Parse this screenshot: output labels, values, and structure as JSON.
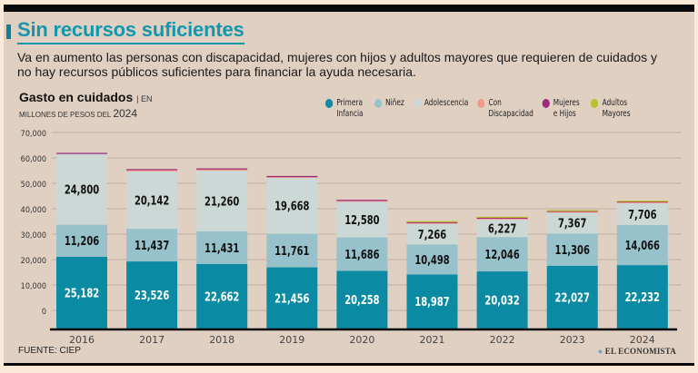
{
  "header": {
    "title": "Sin recursos suficientes",
    "subtitle": "Va en aumento las personas con discapacidad, mujeres con hijos y adultos mayores que requieren de cuidados y no hay recursos públicos suficientes para financiar la ayuda necesaria."
  },
  "footer": {
    "source": "FUENTE: CIEP",
    "logo": "EL ECONOMISTA"
  },
  "chart_data": {
    "type": "bar",
    "stacked": true,
    "title": "Gasto en cuidados",
    "unit_prefix": "| EN",
    "unit_line": "MILLONES DE PESOS DEL",
    "unit_year": "2024",
    "xlabel": "",
    "ylabel": "",
    "ylim": [
      0,
      70000
    ],
    "yticks": [
      "70,000",
      "60,000",
      "50,000",
      "40,000",
      "30,000",
      "20,000",
      "10,000",
      "0"
    ],
    "grid": true,
    "legend_position": "top-right",
    "categories": [
      "2016",
      "2017",
      "2018",
      "2019",
      "2020",
      "2021",
      "2022",
      "2023",
      "2024"
    ],
    "series": [
      {
        "name": "Primera Infancia",
        "color": "#0a8ba3",
        "label_color": "#ffffff",
        "labeled": true,
        "values": [
          25182,
          23526,
          22662,
          21456,
          20258,
          18987,
          20032,
          22027,
          22232
        ],
        "labels": [
          "25,182",
          "23,526",
          "22,662",
          "21,456",
          "20,258",
          "18,987",
          "20,032",
          "22,027",
          "22,232"
        ]
      },
      {
        "name": "Niñez",
        "color": "#97c2cb",
        "label_color": "#111111",
        "labeled": true,
        "values": [
          11206,
          11437,
          11431,
          11761,
          11686,
          10498,
          12046,
          11306,
          14066
        ],
        "labels": [
          "11,206",
          "11,437",
          "11,431",
          "11,761",
          "11,686",
          "10,498",
          "12,046",
          "11,306",
          "14,066"
        ]
      },
      {
        "name": "Adolescencia",
        "color": "#ccd8d6",
        "label_color": "#111111",
        "labeled": true,
        "values": [
          24800,
          20142,
          21260,
          19668,
          12580,
          7266,
          6227,
          7367,
          7706
        ],
        "labels": [
          "24,800",
          "20,142",
          "21,260",
          "19,668",
          "12,580",
          "7,266",
          "6,227",
          "7,367",
          "7,706"
        ]
      },
      {
        "name": "Con Discapacidad",
        "color": "#ef9a8a",
        "labeled": false,
        "values": [
          0,
          500,
          500,
          300,
          300,
          300,
          300,
          300,
          300
        ]
      },
      {
        "name": "Mujeres e Hijos",
        "color": "#9b2a7a",
        "labeled": false,
        "values": [
          400,
          300,
          300,
          300,
          300,
          300,
          300,
          300,
          300
        ]
      },
      {
        "name": "Adultos Mayores",
        "color": "#b8c22a",
        "labeled": false,
        "values": [
          0,
          0,
          0,
          0,
          0,
          300,
          300,
          200,
          200
        ]
      }
    ]
  }
}
